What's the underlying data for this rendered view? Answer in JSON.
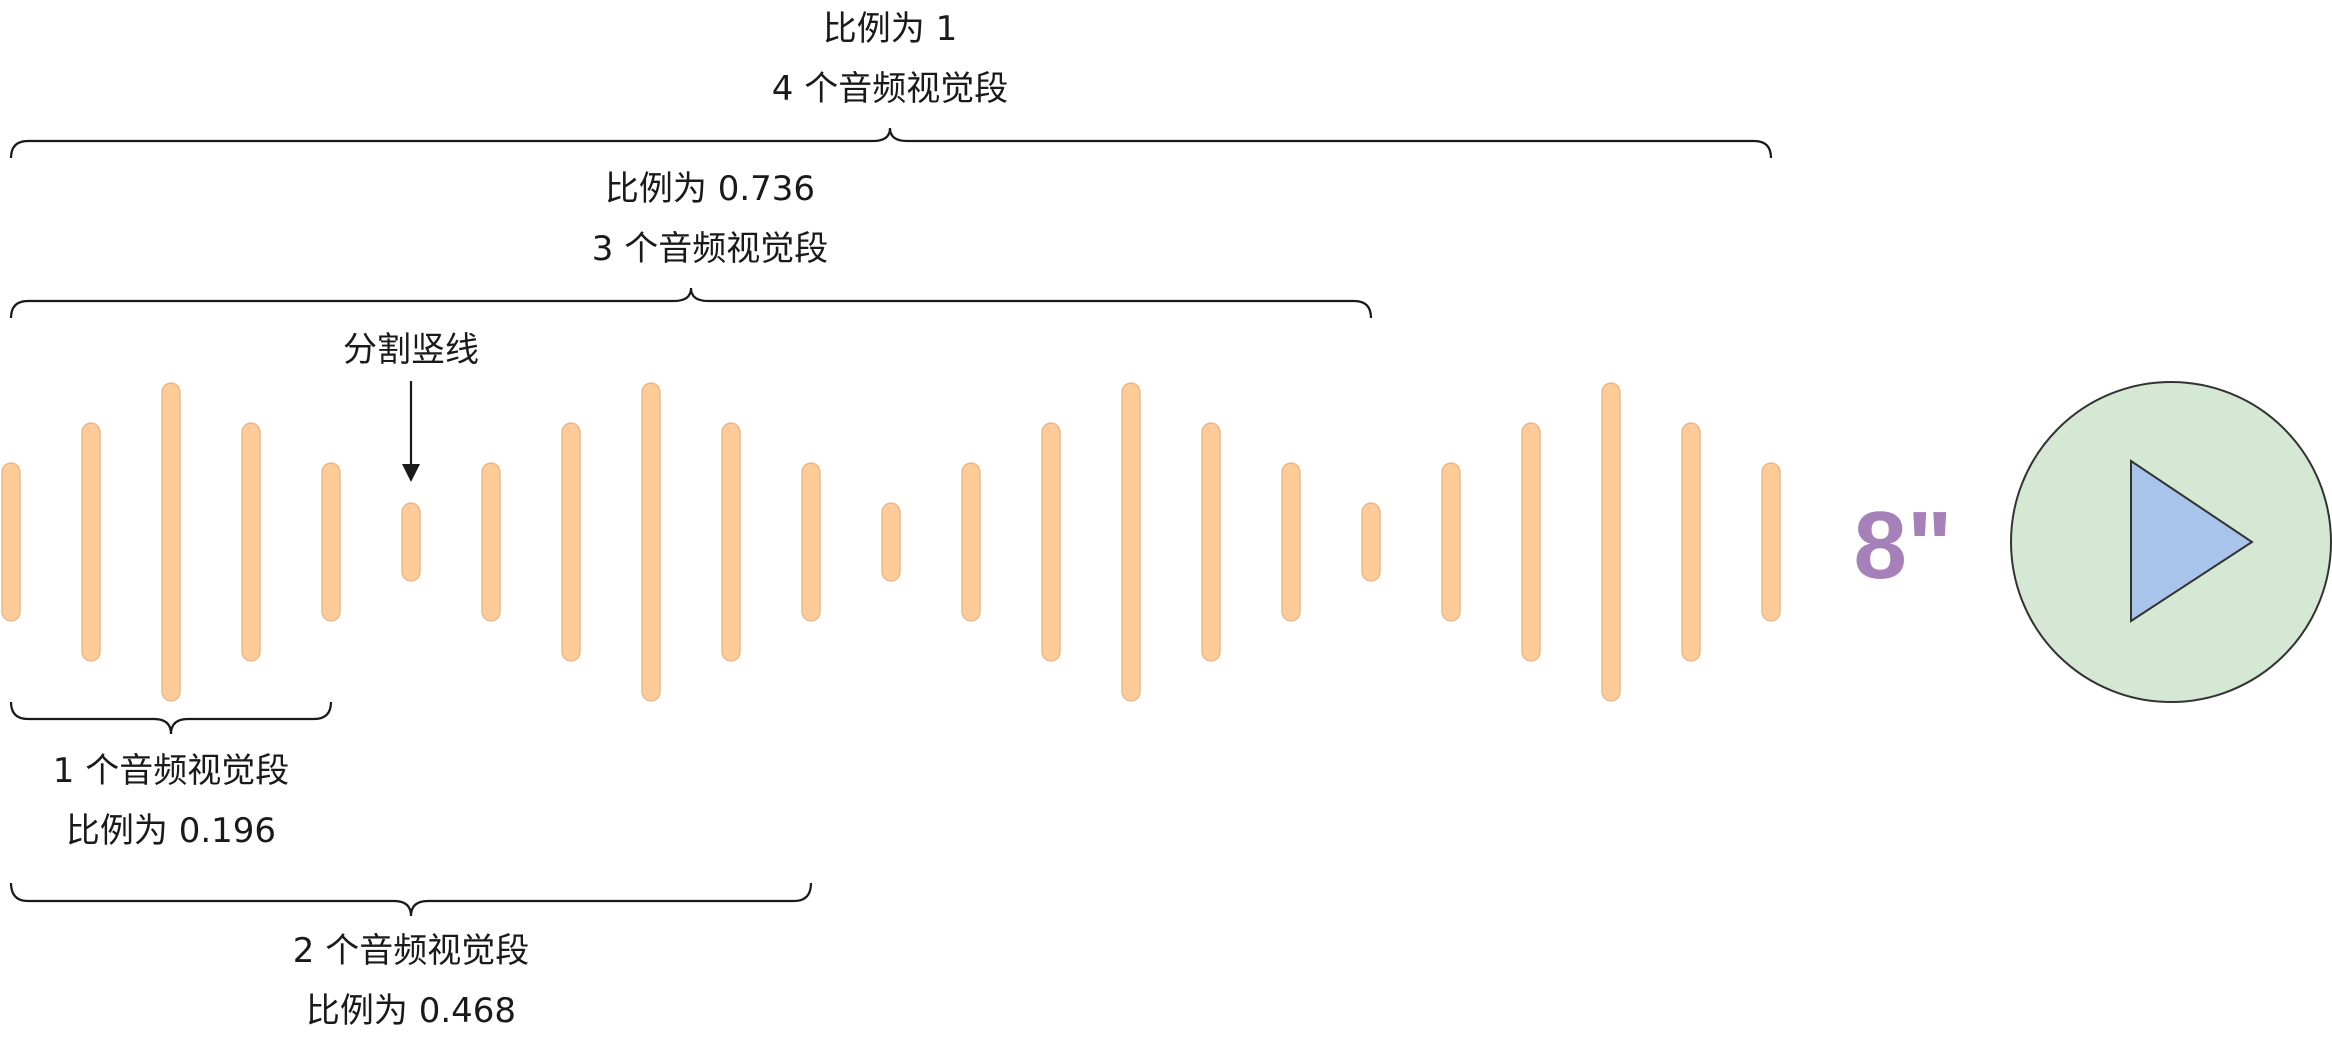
{
  "colors": {
    "bar_fill": "#ffcc99",
    "bar_stroke": "#e9b07e",
    "duration_text": "#a680b8",
    "play_circle_fill": "#d5e8d4",
    "play_circle_stroke": "#333333",
    "play_triangle_fill": "#a9c4eb",
    "play_triangle_stroke": "#333333",
    "line": "#1a1a1a"
  },
  "labels": {
    "four_segments_ratio": "比例为 1",
    "four_segments_count": "4 个音频视觉段",
    "three_segments_ratio": "比例为 0.736",
    "three_segments_count": "3 个音频视觉段",
    "divider": "分割竖线",
    "one_segment_count": "1 个音频视觉段",
    "one_segment_ratio": "比例为 0.196",
    "two_segments_count": "2 个音频视觉段",
    "two_segments_ratio": "比例为 0.468"
  },
  "waveform": {
    "bar_levels": [
      2,
      3,
      4,
      3,
      2,
      1,
      2,
      3,
      4,
      3,
      2,
      1,
      2,
      3,
      4,
      3,
      2,
      1,
      2,
      3,
      4,
      3,
      2
    ]
  },
  "duration": "8\"",
  "icons": {
    "play": "play-triangle-icon",
    "divider_arrow": "arrow-down-icon"
  }
}
